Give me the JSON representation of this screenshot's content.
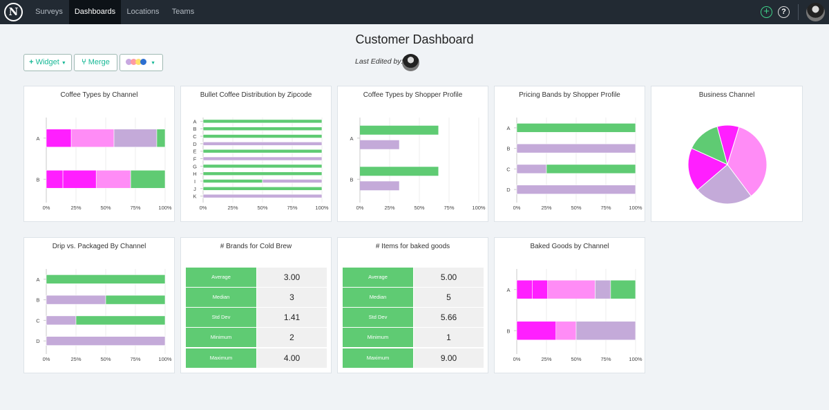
{
  "nav": {
    "logo": "N",
    "tabs": [
      {
        "label": "Surveys",
        "active": false
      },
      {
        "label": "Dashboards",
        "active": true
      },
      {
        "label": "Locations",
        "active": false
      },
      {
        "label": "Teams",
        "active": false
      }
    ],
    "add_icon": "plus-circle-icon",
    "help_label": "?"
  },
  "header": {
    "title": "Customer Dashboard",
    "widget_label": "Widget",
    "merge_label": "Merge",
    "palette_colors": [
      "#c8a8e0",
      "#ff9aa2",
      "#ffe16b",
      "#2d6fd0"
    ],
    "last_edited_label": "Last Edited by:"
  },
  "colors": {
    "green": "#5fcb73",
    "magenta": "#ff1fff",
    "pink": "#ff8cf6",
    "lavender": "#c4aad9",
    "accent": "#17b896"
  },
  "charts": {
    "coffee_types_by_channel": {
      "title": "Coffee Types by Channel",
      "chart_data": {
        "type": "bar",
        "stacked": true,
        "orientation": "horizontal",
        "categories": [
          "A",
          "B"
        ],
        "segments": [
          [
            {
              "value": 21,
              "color": "magenta"
            },
            {
              "value": 36,
              "color": "pink"
            },
            {
              "value": 36,
              "color": "lavender"
            },
            {
              "value": 7,
              "color": "green"
            }
          ],
          [
            {
              "value": 14,
              "color": "magenta"
            },
            {
              "value": 28,
              "color": "magenta"
            },
            {
              "value": 29,
              "color": "pink"
            },
            {
              "value": 29,
              "color": "green"
            }
          ]
        ],
        "ticks": [
          "0%",
          "25%",
          "50%",
          "75%",
          "100%"
        ]
      }
    },
    "bullet_coffee_by_zip": {
      "title": "Bullet Coffee Distribution by Zipcode",
      "chart_data": {
        "type": "bar",
        "stacked": true,
        "orientation": "horizontal",
        "categories": [
          "A",
          "B",
          "C",
          "D",
          "E",
          "F",
          "G",
          "H",
          "I",
          "J",
          "K"
        ],
        "segments": [
          [
            {
              "value": 100,
              "color": "green"
            }
          ],
          [
            {
              "value": 100,
              "color": "green"
            }
          ],
          [
            {
              "value": 100,
              "color": "green"
            }
          ],
          [
            {
              "value": 100,
              "color": "lavender"
            }
          ],
          [
            {
              "value": 100,
              "color": "green"
            }
          ],
          [
            {
              "value": 100,
              "color": "lavender"
            }
          ],
          [
            {
              "value": 100,
              "color": "green"
            }
          ],
          [
            {
              "value": 100,
              "color": "green"
            }
          ],
          [
            {
              "value": 50,
              "color": "green"
            },
            {
              "value": 50,
              "color": "lavender"
            }
          ],
          [
            {
              "value": 100,
              "color": "green"
            }
          ],
          [
            {
              "value": 100,
              "color": "lavender"
            }
          ]
        ],
        "ticks": [
          "0%",
          "25%",
          "50%",
          "75%",
          "100%"
        ]
      }
    },
    "coffee_types_by_shopper": {
      "title": "Coffee Types by Shopper Profile",
      "chart_data": {
        "type": "bar",
        "orientation": "horizontal",
        "categories": [
          "A",
          "B"
        ],
        "series": [
          {
            "color": "green",
            "values": [
              66,
              66
            ]
          },
          {
            "color": "lavender",
            "values": [
              33,
              33
            ]
          }
        ],
        "ticks": [
          "0%",
          "25%",
          "50%",
          "75%",
          "100%"
        ]
      }
    },
    "pricing_bands_by_shopper": {
      "title": "Pricing Bands by Shopper Profile",
      "chart_data": {
        "type": "bar",
        "stacked": true,
        "orientation": "horizontal",
        "categories": [
          "A",
          "B",
          "C",
          "D"
        ],
        "segments": [
          [
            {
              "value": 100,
              "color": "green"
            }
          ],
          [
            {
              "value": 100,
              "color": "lavender"
            }
          ],
          [
            {
              "value": 25,
              "color": "lavender"
            },
            {
              "value": 75,
              "color": "green"
            }
          ],
          [
            {
              "value": 100,
              "color": "lavender"
            }
          ]
        ],
        "ticks": [
          "0%",
          "25%",
          "50%",
          "75%",
          "100%"
        ]
      }
    },
    "business_channel": {
      "title": "Business Channel",
      "chart_data": {
        "type": "pie",
        "slices": [
          {
            "value": 35,
            "color": "pink"
          },
          {
            "value": 24,
            "color": "lavender"
          },
          {
            "value": 18,
            "color": "magenta"
          },
          {
            "value": 14,
            "color": "green"
          },
          {
            "value": 9,
            "color": "magenta"
          }
        ]
      }
    },
    "drip_vs_packaged": {
      "title": "Drip vs. Packaged By Channel",
      "chart_data": {
        "type": "bar",
        "stacked": true,
        "orientation": "horizontal",
        "categories": [
          "A",
          "B",
          "C",
          "D"
        ],
        "segments": [
          [
            {
              "value": 100,
              "color": "green"
            }
          ],
          [
            {
              "value": 50,
              "color": "lavender"
            },
            {
              "value": 50,
              "color": "green"
            }
          ],
          [
            {
              "value": 25,
              "color": "lavender"
            },
            {
              "value": 75,
              "color": "green"
            }
          ],
          [
            {
              "value": 100,
              "color": "lavender"
            }
          ]
        ],
        "ticks": [
          "0%",
          "25%",
          "50%",
          "75%",
          "100%"
        ]
      }
    },
    "baked_goods_by_channel": {
      "title": "Baked Goods by Channel",
      "chart_data": {
        "type": "bar",
        "stacked": true,
        "orientation": "horizontal",
        "categories": [
          "A",
          "B"
        ],
        "segments": [
          [
            {
              "value": 13,
              "color": "magenta"
            },
            {
              "value": 13,
              "color": "magenta"
            },
            {
              "value": 40,
              "color": "pink"
            },
            {
              "value": 13,
              "color": "lavender"
            },
            {
              "value": 21,
              "color": "green"
            }
          ],
          [
            {
              "value": 33,
              "color": "magenta"
            },
            {
              "value": 17,
              "color": "pink"
            },
            {
              "value": 50,
              "color": "lavender"
            }
          ]
        ],
        "ticks": [
          "0%",
          "25%",
          "50%",
          "75%",
          "100%"
        ]
      }
    }
  },
  "stats": {
    "brands_cold_brew": {
      "title": "# Brands for Cold Brew",
      "rows": [
        {
          "label": "Average",
          "value": "3.00"
        },
        {
          "label": "Median",
          "value": "3"
        },
        {
          "label": "Std Dev",
          "value": "1.41"
        },
        {
          "label": "Minimum",
          "value": "2"
        },
        {
          "label": "Maximum",
          "value": "4.00"
        }
      ]
    },
    "items_baked_goods": {
      "title": "# Items for baked goods",
      "rows": [
        {
          "label": "Average",
          "value": "5.00"
        },
        {
          "label": "Median",
          "value": "5"
        },
        {
          "label": "Std Dev",
          "value": "5.66"
        },
        {
          "label": "Minimum",
          "value": "1"
        },
        {
          "label": "Maximum",
          "value": "9.00"
        }
      ]
    }
  }
}
